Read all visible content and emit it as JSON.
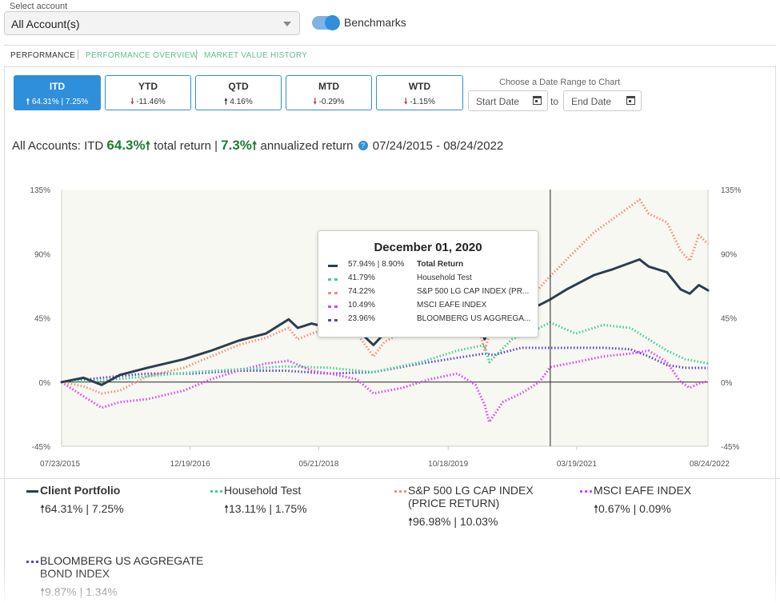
{
  "account": {
    "label": "Select account",
    "value": "All Account(s)"
  },
  "benchmarks_label": "Benchmarks",
  "tabs": [
    {
      "label": "PERFORMANCE",
      "active": true
    },
    {
      "label": "PERFORMANCE OVERVIEW",
      "active": false
    },
    {
      "label": "MARKET VALUE HISTORY",
      "active": false
    }
  ],
  "periods": [
    {
      "name": "ITD",
      "value": "64.31% | 7.25%",
      "direction": "up",
      "active": true
    },
    {
      "name": "YTD",
      "value": "-11.46%",
      "direction": "down",
      "active": false
    },
    {
      "name": "QTD",
      "value": "4.16%",
      "direction": "up",
      "active": false
    },
    {
      "name": "MTD",
      "value": "-0.29%",
      "direction": "down",
      "active": false
    },
    {
      "name": "WTD",
      "value": "-1.15%",
      "direction": "down",
      "active": false
    }
  ],
  "date_range": {
    "title": "Choose a Date Range to Chart",
    "start_placeholder": "Start Date",
    "end_placeholder": "End Date",
    "to_label": "to"
  },
  "summary": {
    "prefix": "All Accounts:",
    "period": "ITD",
    "total_return": "64.3%",
    "total_label": "total return |",
    "annualized": "7.3%",
    "annualized_label": "annualized return",
    "date_span": "07/24/2015 - 08/24/2022"
  },
  "tooltip": {
    "title": "December 01, 2020",
    "rows": [
      {
        "value": "57.94% | 8.90%",
        "name": "Total Return"
      },
      {
        "value": "41.79%",
        "name": "Household Test"
      },
      {
        "value": "74.22%",
        "name": "S&P 500 LG CAP INDEX (PR..."
      },
      {
        "value": "10.49%",
        "name": "MSCI EAFE INDEX"
      },
      {
        "value": "23.96%",
        "name": "BLOOMBERG US AGGREGA..."
      }
    ]
  },
  "chart_data": {
    "type": "line",
    "y_tick_labels": [
      "135%",
      "90%",
      "45%",
      "0%",
      "-45%"
    ],
    "x_tick_labels": [
      "07/23/2015",
      "12/19/2016",
      "05/21/2018",
      "10/18/2019",
      "03/19/2021",
      "08/24/2022"
    ],
    "ylim": [
      -45,
      135
    ],
    "xlim": [
      2015.56,
      2022.65
    ],
    "grid": false,
    "legend_position": "bottom",
    "crosshair_x": 2020.92,
    "series": [
      {
        "name": "Client Portfolio",
        "color": "#2c3e50",
        "style": "solid",
        "x": [
          2015.56,
          2015.8,
          2016.0,
          2016.2,
          2016.5,
          2016.9,
          2017.2,
          2017.5,
          2017.8,
          2018.05,
          2018.15,
          2018.3,
          2018.5,
          2018.7,
          2018.8,
          2018.98,
          2019.1,
          2019.3,
          2019.6,
          2019.9,
          2020.1,
          2020.2,
          2020.25,
          2020.4,
          2020.6,
          2020.8,
          2020.92,
          2021.1,
          2021.4,
          2021.6,
          2021.9,
          2022.0,
          2022.2,
          2022.35,
          2022.45,
          2022.55,
          2022.65
        ],
        "y": [
          0,
          3,
          -2,
          5,
          10,
          16,
          22,
          29,
          34,
          44,
          38,
          41,
          38,
          40,
          37,
          26,
          34,
          40,
          45,
          44,
          47,
          30,
          38,
          44,
          50,
          54,
          57.94,
          65,
          75,
          79,
          86,
          81,
          77,
          65,
          62,
          68,
          64.31
        ]
      },
      {
        "name": "Household Test",
        "color": "#3ecf9a",
        "style": "dotted",
        "x": [
          2015.56,
          2016.0,
          2016.5,
          2017.0,
          2017.5,
          2018.0,
          2018.5,
          2018.98,
          2019.5,
          2019.9,
          2020.2,
          2020.25,
          2020.5,
          2020.8,
          2020.92,
          2021.2,
          2021.5,
          2021.8,
          2022.0,
          2022.2,
          2022.4,
          2022.65
        ],
        "y": [
          0,
          1,
          4,
          7,
          9,
          11,
          10,
          7,
          14,
          22,
          26,
          14,
          30,
          38,
          41.79,
          34,
          40,
          38,
          30,
          22,
          16,
          13.11
        ]
      },
      {
        "name": "S&P 500 LG CAP INDEX (PRICE RETURN)",
        "color": "#f1907a",
        "style": "dotted",
        "x": [
          2015.56,
          2015.8,
          2016.0,
          2016.2,
          2016.5,
          2016.9,
          2017.2,
          2017.5,
          2017.8,
          2018.05,
          2018.15,
          2018.3,
          2018.5,
          2018.7,
          2018.8,
          2018.98,
          2019.1,
          2019.3,
          2019.6,
          2019.9,
          2020.1,
          2020.2,
          2020.25,
          2020.4,
          2020.6,
          2020.8,
          2020.92,
          2021.1,
          2021.4,
          2021.6,
          2021.9,
          2022.0,
          2022.2,
          2022.35,
          2022.45,
          2022.55,
          2022.65
        ],
        "y": [
          0,
          -3,
          -8,
          -6,
          4,
          10,
          18,
          26,
          31,
          38,
          30,
          34,
          38,
          42,
          34,
          18,
          28,
          35,
          40,
          42,
          46,
          22,
          33,
          44,
          56,
          66,
          74.22,
          86,
          105,
          114,
          128,
          118,
          112,
          92,
          85,
          103,
          96.98
        ]
      },
      {
        "name": "MSCI EAFE INDEX",
        "color": "#e040fb",
        "style": "dotted",
        "x": [
          2015.56,
          2015.8,
          2016.0,
          2016.2,
          2016.5,
          2016.9,
          2017.2,
          2017.5,
          2017.8,
          2018.05,
          2018.3,
          2018.5,
          2018.8,
          2018.98,
          2019.3,
          2019.6,
          2019.9,
          2020.1,
          2020.2,
          2020.25,
          2020.4,
          2020.6,
          2020.8,
          2020.92,
          2021.2,
          2021.5,
          2021.8,
          2022.0,
          2022.2,
          2022.35,
          2022.45,
          2022.55,
          2022.65
        ],
        "y": [
          0,
          -10,
          -18,
          -14,
          -12,
          -6,
          2,
          8,
          13,
          15,
          8,
          6,
          2,
          -8,
          -4,
          2,
          6,
          -2,
          -16,
          -28,
          -14,
          -8,
          0,
          10.49,
          14,
          18,
          20,
          22,
          14,
          0,
          -4,
          -1,
          0.67
        ]
      },
      {
        "name": "BLOOMBERG US AGGREGATE BOND INDEX",
        "color": "#5b3fd6",
        "style": "dotted",
        "x": [
          2015.56,
          2016.0,
          2016.5,
          2017.0,
          2017.5,
          2018.0,
          2018.5,
          2018.98,
          2019.5,
          2019.9,
          2020.2,
          2020.3,
          2020.6,
          2020.92,
          2021.2,
          2021.5,
          2021.8,
          2022.0,
          2022.2,
          2022.4,
          2022.65
        ],
        "y": [
          0,
          3,
          6,
          6,
          8,
          8,
          6,
          7,
          13,
          17,
          20,
          19,
          24,
          23.96,
          24,
          24,
          23,
          18,
          12,
          10,
          9.87
        ]
      }
    ]
  },
  "legend": [
    {
      "name": "Client Portfolio",
      "value": "64.31% | 7.25%",
      "style": "solid",
      "color": "#2c3e50"
    },
    {
      "name": "Household Test",
      "value": "13.11% | 1.75%",
      "style": "dotted",
      "color": "#3ecf9a"
    },
    {
      "name": "S&P 500 LG CAP INDEX (PRICE RETURN)",
      "value": "96.98% | 10.03%",
      "style": "dotted",
      "color": "#f1907a"
    },
    {
      "name": "MSCI EAFE INDEX",
      "value": "0.67% | 0.09%",
      "style": "dotted",
      "color": "#e040fb"
    },
    {
      "name": "BLOOMBERG US AGGREGATE BOND INDEX",
      "value": "9.87% | 1.34%",
      "style": "dotted",
      "color": "#5b3fd6"
    }
  ]
}
